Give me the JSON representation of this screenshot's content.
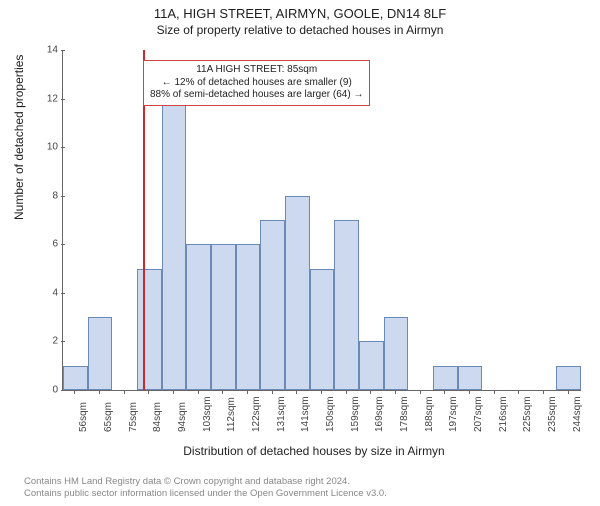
{
  "title_line1": "11A, HIGH STREET, AIRMYN, GOOLE, DN14 8LF",
  "title_line2": "Size of property relative to detached houses in Airmyn",
  "ylabel": "Number of detached properties",
  "xlabel": "Distribution of detached houses by size in Airmyn",
  "chart": {
    "type": "histogram",
    "ylim": [
      0,
      14
    ],
    "ytick_step": 2,
    "yticks": [
      0,
      2,
      4,
      6,
      8,
      10,
      12,
      14
    ],
    "bar_color": "#cdd9ee",
    "bar_border_color": "#6b8ab8",
    "axis_color": "#666666",
    "background_color": "#ffffff",
    "font_family": "Arial",
    "title_fontsize": 13,
    "label_fontsize": 12,
    "tick_fontsize": 10,
    "x_categories": [
      "56sqm",
      "65sqm",
      "75sqm",
      "84sqm",
      "94sqm",
      "103sqm",
      "112sqm",
      "122sqm",
      "131sqm",
      "141sqm",
      "150sqm",
      "159sqm",
      "169sqm",
      "178sqm",
      "188sqm",
      "197sqm",
      "207sqm",
      "216sqm",
      "225sqm",
      "235sqm",
      "244sqm"
    ],
    "values": [
      1,
      3,
      0,
      5,
      12,
      6,
      6,
      6,
      7,
      8,
      5,
      7,
      2,
      3,
      0,
      1,
      1,
      0,
      0,
      0,
      1
    ],
    "marker_line": {
      "position_sqm": 85,
      "color": "#cc2a2a",
      "width": 2
    }
  },
  "annotation": {
    "border_color": "#cc4444",
    "bg_color": "#ffffff",
    "fontsize": 10,
    "line1": "11A HIGH STREET: 85sqm",
    "line2": "← 12% of detached houses are smaller (9)",
    "line3": "88% of semi-detached houses are larger (64) →"
  },
  "footer": {
    "line1": "Contains HM Land Registry data © Crown copyright and database right 2024.",
    "line2": "Contains public sector information licensed under the Open Government Licence v3.0.",
    "color": "#888888",
    "fontsize": 9.5
  }
}
